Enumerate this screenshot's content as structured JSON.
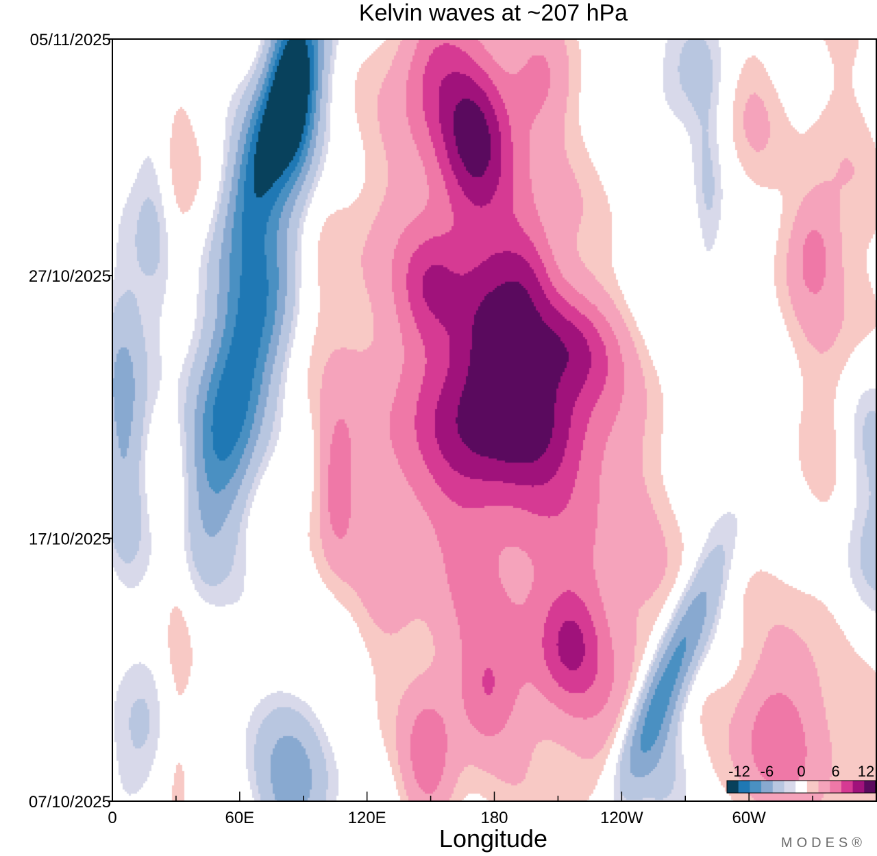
{
  "chart_data": {
    "type": "heatmap",
    "title": "Kelvin waves at ~207 hPa",
    "xlabel": "Longitude",
    "ylabel": "",
    "x_range_deg": [
      0,
      360
    ],
    "x_ticks": [
      {
        "deg": 0,
        "label": "0"
      },
      {
        "deg": 60,
        "label": "60E"
      },
      {
        "deg": 120,
        "label": "120E"
      },
      {
        "deg": 180,
        "label": "180"
      },
      {
        "deg": 240,
        "label": "120W"
      },
      {
        "deg": 300,
        "label": "60W"
      }
    ],
    "y_range_days": [
      0,
      29
    ],
    "y_axis_note": "day 0 = 07/10/2025 (bottom), day 29 = 05/11/2025 (top)",
    "y_ticks": [
      {
        "day": 0,
        "label": "07/10/2025"
      },
      {
        "day": 10,
        "label": "17/10/2025"
      },
      {
        "day": 20,
        "label": "27/10/2025"
      },
      {
        "day": 29,
        "label": "05/11/2025"
      }
    ],
    "colorbar": {
      "levels": [
        -12,
        -10,
        -8,
        -6,
        -4,
        -2,
        0,
        2,
        4,
        6,
        8,
        10,
        12
      ],
      "colors": [
        "#08415c",
        "#1f78b4",
        "#4a90c2",
        "#88a9d0",
        "#b8c6e0",
        "#d8d9ea",
        "#ffffff",
        "#f8c9c5",
        "#f5a3bb",
        "#ef78a7",
        "#d63a93",
        "#a0127b",
        "#5a0a5e"
      ],
      "labels": [
        {
          "value": -12,
          "text": "-12"
        },
        {
          "value": -6,
          "text": "-6"
        },
        {
          "value": 0,
          "text": "0"
        },
        {
          "value": 6,
          "text": "6"
        },
        {
          "value": 12,
          "text": "12"
        }
      ]
    },
    "anomalies": [
      {
        "lon": 60,
        "day": 16.5,
        "value": -10.5,
        "slon": 12,
        "sday": 4.5,
        "tilt": -0.6
      },
      {
        "lon": 75,
        "day": 25.5,
        "value": -10,
        "slon": 10,
        "sday": 3.2,
        "tilt": -0.9
      },
      {
        "lon": 85,
        "day": 27,
        "value": -8,
        "slon": 8,
        "sday": 2.5,
        "tilt": 0
      },
      {
        "lon": 5,
        "day": 15,
        "value": -4.5,
        "slon": 7,
        "sday": 4,
        "tilt": 0
      },
      {
        "lon": 85,
        "day": 1,
        "value": -5,
        "slon": 12,
        "sday": 2.2,
        "tilt": 0
      },
      {
        "lon": 10,
        "day": 2,
        "value": -2.5,
        "slon": 10,
        "sday": 2,
        "tilt": 0
      },
      {
        "lon": 262,
        "day": 4.8,
        "value": -8,
        "slon": 8,
        "sday": 3.2,
        "tilt": -1.2
      },
      {
        "lon": 260,
        "day": 2,
        "value": -3,
        "slon": 12,
        "sday": 2,
        "tilt": 0
      },
      {
        "lon": 355,
        "day": 9,
        "value": -3,
        "slon": 12,
        "sday": 3,
        "tilt": 0
      },
      {
        "lon": 355,
        "day": 14,
        "value": -2,
        "slon": 10,
        "sday": 2,
        "tilt": 0
      },
      {
        "lon": 145,
        "day": 5.5,
        "value": -2,
        "slon": 10,
        "sday": 3,
        "tilt": 0
      },
      {
        "lon": 270,
        "day": 27.5,
        "value": -2.5,
        "slon": 15,
        "sday": 1.5,
        "tilt": 0
      },
      {
        "lon": 280,
        "day": 22.5,
        "value": -2,
        "slon": 5,
        "sday": 3,
        "tilt": 0
      },
      {
        "lon": 20,
        "day": 21,
        "value": -2,
        "slon": 8,
        "sday": 4,
        "tilt": 0
      },
      {
        "lon": 170,
        "day": 25.5,
        "value": 7,
        "slon": 12,
        "sday": 2.2,
        "tilt": 0
      },
      {
        "lon": 190,
        "day": 14.5,
        "value": 7.5,
        "slon": 26,
        "sday": 1.8,
        "tilt": 0.2
      },
      {
        "lon": 215,
        "day": 17.5,
        "value": 6,
        "slon": 16,
        "sday": 1.5,
        "tilt": 0.5
      },
      {
        "lon": 175,
        "day": 18,
        "value": 4.5,
        "slon": 12,
        "sday": 2,
        "tilt": 0
      },
      {
        "lon": 150,
        "day": 28,
        "value": 5,
        "slon": 12,
        "sday": 2,
        "tilt": 0
      },
      {
        "lon": 200,
        "day": 27.5,
        "value": 3.5,
        "slon": 10,
        "sday": 1.5,
        "tilt": 0
      },
      {
        "lon": 195,
        "day": 20,
        "value": 3.5,
        "slon": 10,
        "sday": 1.5,
        "tilt": 0
      },
      {
        "lon": 150,
        "day": 19.8,
        "value": 3.5,
        "slon": 10,
        "sday": 1.5,
        "tilt": 0
      },
      {
        "lon": 105,
        "day": 12,
        "value": 4,
        "slon": 6,
        "sday": 2,
        "tilt": 0
      },
      {
        "lon": 148,
        "day": 2,
        "value": 5,
        "slon": 9,
        "sday": 2.2,
        "tilt": 0
      },
      {
        "lon": 215,
        "day": 6,
        "value": 4,
        "slon": 10,
        "sday": 1.5,
        "tilt": 0
      },
      {
        "lon": 175,
        "day": 4,
        "value": 3.5,
        "slon": 10,
        "sday": 1.5,
        "tilt": 0
      },
      {
        "lon": 330,
        "day": 21,
        "value": 3.5,
        "slon": 8,
        "sday": 1.5,
        "tilt": 0
      },
      {
        "lon": 310,
        "day": 2,
        "value": 3.5,
        "slon": 12,
        "sday": 2,
        "tilt": 0
      },
      {
        "lon": 160,
        "day": 15.5,
        "value": 2.5,
        "slon": 45,
        "sday": 6,
        "tilt": 1.1
      },
      {
        "lon": 220,
        "day": 10,
        "value": 2.5,
        "slon": 28,
        "sday": 4.5,
        "tilt": 0
      },
      {
        "lon": 185,
        "day": 23,
        "value": 2.5,
        "slon": 25,
        "sday": 4,
        "tilt": 0.3
      },
      {
        "lon": 165,
        "day": 21,
        "value": 2,
        "slon": 30,
        "sday": 5,
        "tilt": 0
      },
      {
        "lon": 220,
        "day": 4,
        "value": 2.5,
        "slon": 35,
        "sday": 3,
        "tilt": 0
      },
      {
        "lon": 140,
        "day": 8,
        "value": 2,
        "slon": 25,
        "sday": 4,
        "tilt": 0.4
      },
      {
        "lon": 340,
        "day": 19,
        "value": 2.2,
        "slon": 15,
        "sday": 8,
        "tilt": 0
      },
      {
        "lon": 30,
        "day": 23.5,
        "value": 2,
        "slon": 6,
        "sday": 3,
        "tilt": 0
      },
      {
        "lon": 30,
        "day": 5,
        "value": 2,
        "slon": 6,
        "sday": 6,
        "tilt": 0
      },
      {
        "lon": 330,
        "day": 3.5,
        "value": 2.5,
        "slon": 30,
        "sday": 3,
        "tilt": 0
      },
      {
        "lon": 300,
        "day": 26,
        "value": 2,
        "slon": 10,
        "sday": 2.5,
        "tilt": 0
      },
      {
        "lon": 160,
        "day": 11,
        "value": 2,
        "slon": 30,
        "sday": 4,
        "tilt": 0
      }
    ]
  },
  "branding": {
    "text": "MODES®"
  }
}
